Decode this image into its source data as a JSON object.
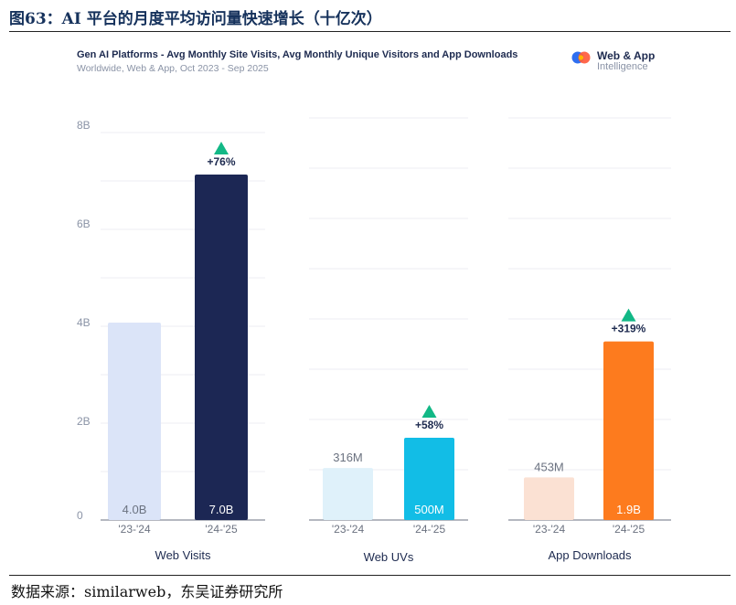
{
  "figure": {
    "title": "图63：AI 平台的月度平均访问量快速增长（十亿次）",
    "source": "数据来源：similarweb，东吴证券研究所"
  },
  "header": {
    "title": "Gen AI Platforms - Avg Monthly Site Visits, Avg Monthly Unique Visitors and App Downloads",
    "subtitle": "Worldwide, Web & App, Oct 2023 - Sep 2025",
    "brand_name": "Web & App",
    "brand_sub": "Intelligence",
    "brand_logo_icon": "similarweb-logo-icon"
  },
  "colors": {
    "grid": "#eceef3",
    "axis": "#6b7280",
    "tick_label": "#8a93a6",
    "value_label_light": "#6b7280",
    "value_label_dark": "#ffffff",
    "arrow": "#12b886",
    "change_label": "#1d2a4f",
    "panel_label": "#1d2a4f"
  },
  "chart_data": [
    {
      "type": "bar",
      "title": "Web Visits",
      "categories": [
        "'23-'24",
        "'24-'25"
      ],
      "values": [
        4.0,
        7.0
      ],
      "value_labels": [
        "4.0B",
        "7.0B"
      ],
      "bar_colors": [
        "#dbe4f8",
        "#1c2754"
      ],
      "change": "+76%",
      "ylim": [
        0,
        8
      ],
      "yticks": [
        0,
        2,
        4,
        6,
        8
      ],
      "ytick_labels": [
        "0",
        "2B",
        "4B",
        "6B",
        "8B"
      ]
    },
    {
      "type": "bar",
      "title": "Web UVs",
      "categories": [
        "'23-'24",
        "'24-'25"
      ],
      "values": [
        316,
        500
      ],
      "value_labels": [
        "316M",
        "500M"
      ],
      "bar_colors": [
        "#dff1fa",
        "#12bde6"
      ],
      "change": "+58%",
      "ylim": [
        0,
        2400
      ]
    },
    {
      "type": "bar",
      "title": "App Downloads",
      "categories": [
        "'23-'24",
        "'24-'25"
      ],
      "values": [
        453,
        1900
      ],
      "value_labels": [
        "453M",
        "1.9B"
      ],
      "bar_colors": [
        "#fbe1d3",
        "#fd7b1e"
      ],
      "change": "+319%",
      "ylim": [
        0,
        4200
      ]
    }
  ]
}
